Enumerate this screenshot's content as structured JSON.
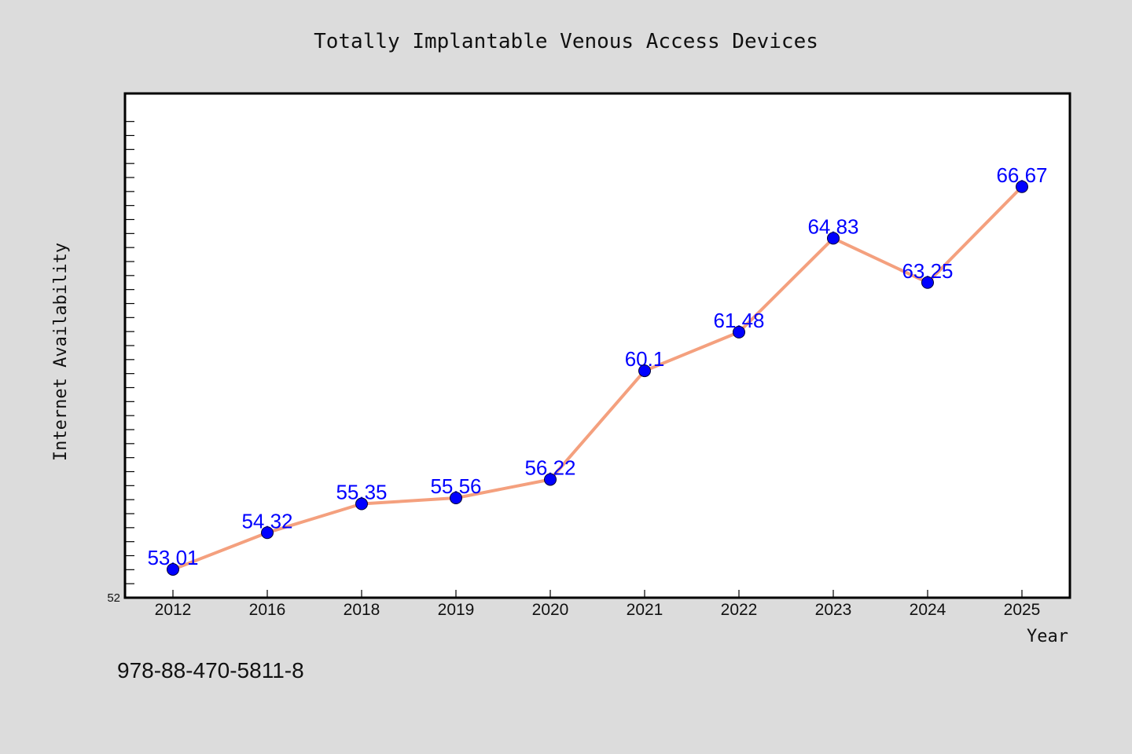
{
  "chart_data": {
    "type": "line",
    "title": "Totally Implantable Venous Access Devices",
    "xlabel": "Year",
    "ylabel": "Internet Availability",
    "categories": [
      "2012",
      "2016",
      "2018",
      "2019",
      "2020",
      "2021",
      "2022",
      "2023",
      "2024",
      "2025"
    ],
    "values": [
      53.01,
      54.32,
      55.35,
      55.56,
      56.22,
      60.1,
      61.48,
      64.83,
      63.25,
      66.67
    ],
    "data_labels": [
      "53.01",
      "54.32",
      "55.35",
      "55.56",
      "56.22",
      "60.1",
      "61.48",
      "64.83",
      "63.25",
      "66.67"
    ],
    "ylim": [
      52,
      70
    ],
    "ytick_labels": [
      "52"
    ],
    "grid": false,
    "line_color": "#f4a07e",
    "marker_color": "#0000ff",
    "label_color": "#0000ff",
    "plot_background": "#ffffff",
    "page_background": "#dcdcdc"
  },
  "footnote": "978-88-470-5811-8"
}
